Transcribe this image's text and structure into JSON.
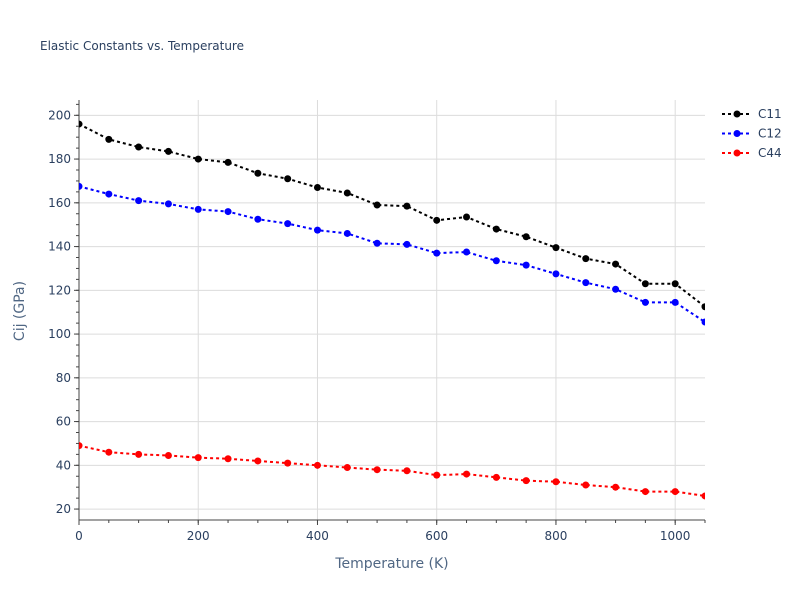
{
  "chart_data": {
    "type": "line",
    "title": "Elastic Constants vs. Temperature",
    "xlabel": "Temperature (K)",
    "ylabel": "Cij (GPa)",
    "xlim": [
      0,
      1050
    ],
    "ylim": [
      15,
      207
    ],
    "xticks": [
      0,
      200,
      400,
      600,
      800,
      1000
    ],
    "yticks": [
      20,
      40,
      60,
      80,
      100,
      120,
      140,
      160,
      180,
      200
    ],
    "grid": true,
    "legend": "top-right",
    "x": [
      0,
      50,
      100,
      150,
      200,
      250,
      300,
      350,
      400,
      450,
      500,
      550,
      600,
      650,
      700,
      750,
      800,
      850,
      900,
      950,
      1000,
      1050
    ],
    "series": [
      {
        "name": "C11",
        "color": "#000000",
        "values": [
          196,
          189,
          185.5,
          183.5,
          180,
          178.5,
          173.5,
          171,
          167,
          164.5,
          159,
          158.5,
          152,
          153.5,
          148,
          144.5,
          139.5,
          134.5,
          132,
          123,
          123,
          112.5
        ]
      },
      {
        "name": "C12",
        "color": "#0000ff",
        "values": [
          167.5,
          164,
          161,
          159.5,
          157,
          156,
          152.5,
          150.5,
          147.5,
          146,
          141.5,
          141,
          137,
          137.5,
          133.5,
          131.5,
          127.5,
          123.5,
          120.5,
          114.5,
          114.5,
          105.5
        ]
      },
      {
        "name": "C44",
        "color": "#ff0000",
        "values": [
          49,
          46,
          45,
          44.5,
          43.5,
          43,
          42,
          41,
          40,
          39,
          38,
          37.5,
          35.5,
          36,
          34.5,
          33,
          32.5,
          31,
          30,
          28,
          28,
          26
        ]
      }
    ]
  }
}
